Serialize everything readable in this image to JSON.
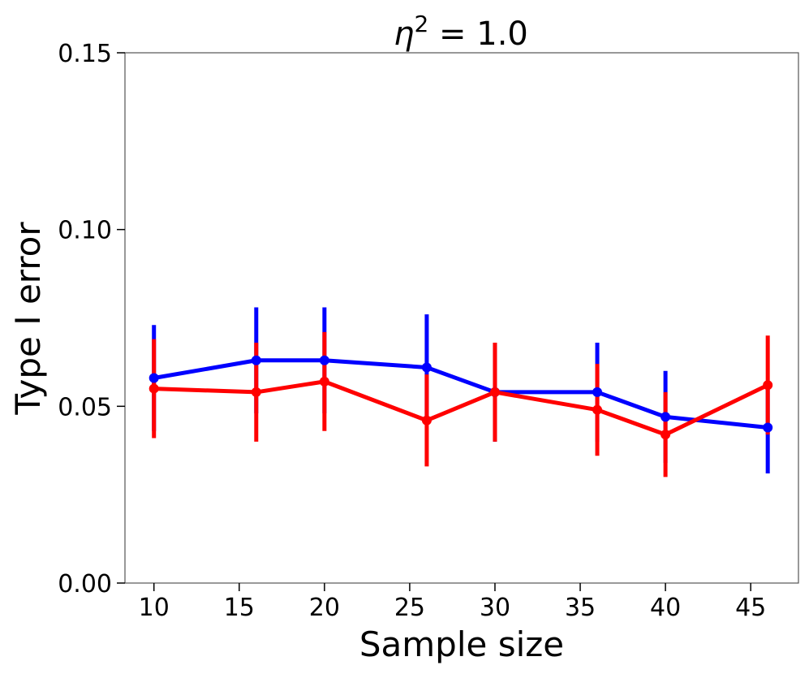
{
  "chart_data": {
    "type": "line",
    "title_base": "η",
    "title_exponent": "2",
    "title_rest": " = 1.0",
    "xlabel": "Sample size",
    "ylabel": "Type I error",
    "xlim": [
      8.3,
      47.8
    ],
    "ylim": [
      0.0,
      0.15
    ],
    "x_ticks": [
      10,
      15,
      20,
      25,
      30,
      35,
      40,
      45
    ],
    "y_ticks": [
      0.0,
      0.05,
      0.1,
      0.15
    ],
    "y_tick_labels": [
      "0.00",
      "0.05",
      "0.10",
      "0.15"
    ],
    "grid": false,
    "series": [
      {
        "name": "blue series",
        "color": "#0000ff",
        "x": [
          10,
          16,
          20,
          26,
          30,
          36,
          40,
          46
        ],
        "y": [
          0.058,
          0.063,
          0.063,
          0.061,
          0.054,
          0.054,
          0.047,
          0.044
        ],
        "err_low": [
          0.043,
          0.048,
          0.048,
          0.046,
          0.04,
          0.04,
          0.034,
          0.031
        ],
        "err_high": [
          0.073,
          0.078,
          0.078,
          0.076,
          0.068,
          0.068,
          0.06,
          0.057
        ]
      },
      {
        "name": "red series",
        "color": "#ff0000",
        "x": [
          10,
          16,
          20,
          26,
          30,
          36,
          40,
          46
        ],
        "y": [
          0.055,
          0.054,
          0.057,
          0.046,
          0.054,
          0.049,
          0.042,
          0.056
        ],
        "err_low": [
          0.041,
          0.04,
          0.043,
          0.033,
          0.04,
          0.036,
          0.03,
          0.042
        ],
        "err_high": [
          0.069,
          0.068,
          0.071,
          0.059,
          0.068,
          0.062,
          0.054,
          0.07
        ]
      }
    ]
  }
}
